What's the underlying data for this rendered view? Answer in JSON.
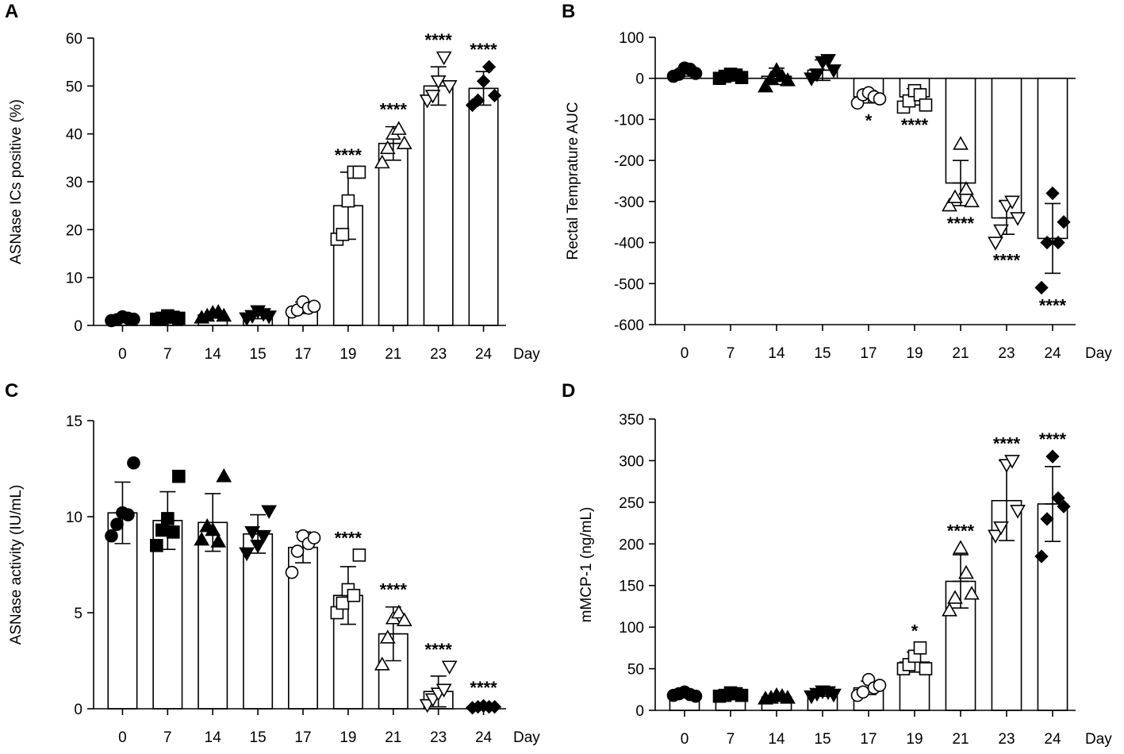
{
  "chart_data": [
    {
      "type": "bar",
      "panel_label": "A",
      "title": "",
      "ylabel": "ASNase ICs positive (%)",
      "xlabel": "Day",
      "ylim": [
        0,
        60
      ],
      "yticks": [
        0,
        10,
        20,
        30,
        40,
        50,
        60
      ],
      "categories": [
        "0",
        "7",
        "14",
        "15",
        "17",
        "19",
        "21",
        "23",
        "24"
      ],
      "values": [
        1.5,
        1.6,
        2.2,
        2.2,
        3.7,
        25,
        38,
        50,
        49.5
      ],
      "sd": [
        0.6,
        0.5,
        0.6,
        0.8,
        1.2,
        7,
        3.5,
        4,
        3.5
      ],
      "markers": [
        "filled-circle",
        "filled-square",
        "filled-triangle-up",
        "filled-triangle-down",
        "open-circle",
        "open-square",
        "open-triangle-up",
        "open-triangle-down",
        "filled-diamond"
      ],
      "points": [
        [
          1.0,
          1.2,
          1.8,
          1.5,
          1.3
        ],
        [
          1.3,
          1.5,
          2.0,
          1.7,
          1.5
        ],
        [
          1.6,
          2.0,
          2.6,
          2.8,
          2.0
        ],
        [
          1.5,
          2.0,
          3.0,
          2.4,
          1.9
        ],
        [
          2.8,
          3.2,
          4.9,
          3.6,
          4.0
        ],
        [
          18,
          19,
          26,
          32,
          32
        ],
        [
          34,
          37,
          40,
          41,
          38
        ],
        [
          47,
          48,
          51,
          56,
          50
        ],
        [
          46,
          47,
          51,
          54,
          48
        ]
      ],
      "significance": [
        "",
        "",
        "",
        "",
        "",
        "****",
        "****",
        "****",
        "****"
      ]
    },
    {
      "type": "bar",
      "panel_label": "B",
      "title": "",
      "ylabel": "Rectal Temprature AUC",
      "xlabel": "Day",
      "ylim": [
        -600,
        100
      ],
      "yticks": [
        -600,
        -500,
        -400,
        -300,
        -200,
        -100,
        0,
        100
      ],
      "categories": [
        "0",
        "7",
        "14",
        "15",
        "17",
        "19",
        "21",
        "23",
        "24"
      ],
      "values": [
        15,
        5,
        5,
        20,
        -45,
        -45,
        -255,
        -340,
        -390
      ],
      "sd": [
        10,
        6,
        20,
        25,
        15,
        20,
        55,
        40,
        85
      ],
      "markers": [
        "filled-circle",
        "filled-square",
        "filled-triangle-up",
        "filled-triangle-down",
        "open-circle",
        "open-square",
        "open-triangle-up",
        "open-triangle-down",
        "filled-diamond"
      ],
      "points": [
        [
          5,
          10,
          25,
          22,
          12
        ],
        [
          0,
          5,
          10,
          8,
          2
        ],
        [
          -20,
          0,
          20,
          5,
          -5
        ],
        [
          0,
          10,
          40,
          45,
          20
        ],
        [
          -60,
          -40,
          -35,
          -45,
          -50
        ],
        [
          -70,
          -55,
          -30,
          -40,
          -65
        ],
        [
          -310,
          -290,
          -160,
          -270,
          -300
        ],
        [
          -400,
          -370,
          -310,
          -300,
          -340
        ],
        [
          -510,
          -400,
          -280,
          -400,
          -350
        ]
      ],
      "significance": [
        "",
        "",
        "",
        "",
        "*",
        "****",
        "****",
        "****",
        "****"
      ]
    },
    {
      "type": "bar",
      "panel_label": "C",
      "title": "",
      "ylabel": "ASNase activity (IU/mL)",
      "xlabel": "Day",
      "ylim": [
        0,
        15
      ],
      "yticks": [
        0,
        5,
        10,
        15
      ],
      "categories": [
        "0",
        "7",
        "14",
        "15",
        "17",
        "19",
        "21",
        "23",
        "24"
      ],
      "values": [
        10.2,
        9.8,
        9.7,
        9.1,
        8.4,
        5.9,
        3.9,
        0.9,
        0.1
      ],
      "sd": [
        1.6,
        1.5,
        1.5,
        1.0,
        0.8,
        1.5,
        1.4,
        0.8,
        0.1
      ],
      "markers": [
        "filled-circle",
        "filled-square",
        "filled-triangle-up",
        "filled-triangle-down",
        "open-circle",
        "open-square",
        "open-triangle-up",
        "open-triangle-down",
        "filled-diamond"
      ],
      "points": [
        [
          9.0,
          9.6,
          10.2,
          10.1,
          12.8
        ],
        [
          8.5,
          9.3,
          9.9,
          9.2,
          12.1
        ],
        [
          8.8,
          9.5,
          9.3,
          8.7,
          12.1
        ],
        [
          8.1,
          9.2,
          8.5,
          9.0,
          10.3
        ],
        [
          7.1,
          8.2,
          9.0,
          8.6,
          8.9
        ],
        [
          5.0,
          5.5,
          6.2,
          5.9,
          8.0
        ],
        [
          2.3,
          3.7,
          4.7,
          5.0,
          4.6
        ],
        [
          0.2,
          0.5,
          0.8,
          1.0,
          2.2
        ],
        [
          0.05,
          0.1,
          0.15,
          0.1,
          0.1
        ]
      ],
      "significance": [
        "",
        "",
        "",
        "",
        "",
        "****",
        "****",
        "****",
        "****"
      ]
    },
    {
      "type": "bar",
      "panel_label": "D",
      "title": "",
      "ylabel": "mMCP-1 (ng/mL)",
      "xlabel": "Day",
      "ylim": [
        0,
        350
      ],
      "yticks": [
        0,
        50,
        100,
        150,
        200,
        250,
        300,
        350
      ],
      "categories": [
        "0",
        "7",
        "14",
        "15",
        "17",
        "19",
        "21",
        "23",
        "24"
      ],
      "values": [
        20,
        19,
        16,
        20,
        27,
        58,
        155,
        252,
        248
      ],
      "sd": [
        3,
        3,
        3,
        3,
        8,
        12,
        32,
        48,
        45
      ],
      "markers": [
        "filled-circle",
        "filled-square",
        "filled-triangle-up",
        "filled-triangle-down",
        "open-circle",
        "open-square",
        "open-triangle-up",
        "open-triangle-down",
        "filled-diamond"
      ],
      "points": [
        [
          18,
          20,
          22,
          19,
          17
        ],
        [
          17,
          18,
          21,
          20,
          18
        ],
        [
          14,
          15,
          18,
          17,
          15
        ],
        [
          17,
          20,
          23,
          22,
          19
        ],
        [
          18,
          22,
          37,
          27,
          30
        ],
        [
          50,
          55,
          65,
          75,
          50
        ],
        [
          120,
          135,
          195,
          165,
          140
        ],
        [
          210,
          220,
          295,
          300,
          240
        ],
        [
          185,
          230,
          305,
          255,
          245
        ]
      ],
      "significance": [
        "",
        "",
        "",
        "",
        "",
        "*",
        "****",
        "****",
        "****"
      ]
    }
  ]
}
